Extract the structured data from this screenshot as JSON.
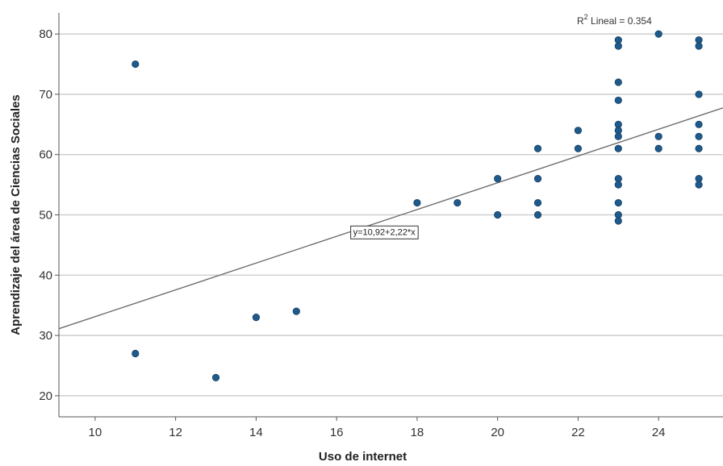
{
  "chart_data": {
    "type": "scatter",
    "title": "",
    "xlabel": "Uso de internet",
    "ylabel": "Aprendizaje del área de Ciencias Sociales",
    "xlim": [
      9.1,
      25.6
    ],
    "ylim": [
      16.5,
      83.5
    ],
    "xticks": [
      10,
      12,
      14,
      16,
      18,
      20,
      22,
      24
    ],
    "yticks": [
      20,
      30,
      40,
      50,
      60,
      70,
      80
    ],
    "grid": "horizontal",
    "point_color": "#1F5A8C",
    "line_color": "#6E6E6E",
    "fit_line": {
      "intercept": 10.92,
      "slope": 2.22
    },
    "fit_equation_label": "y=10,92+2,22*x",
    "r2_label_main": "R",
    "r2_label_sup": "2",
    "r2_label_rest": " Lineal = 0.354",
    "points": [
      {
        "x": 11,
        "y": 75
      },
      {
        "x": 11,
        "y": 27
      },
      {
        "x": 13,
        "y": 23
      },
      {
        "x": 14,
        "y": 33
      },
      {
        "x": 15,
        "y": 34
      },
      {
        "x": 18,
        "y": 52
      },
      {
        "x": 19,
        "y": 52
      },
      {
        "x": 20,
        "y": 56
      },
      {
        "x": 20,
        "y": 50
      },
      {
        "x": 21,
        "y": 61
      },
      {
        "x": 21,
        "y": 56
      },
      {
        "x": 21,
        "y": 52
      },
      {
        "x": 21,
        "y": 50
      },
      {
        "x": 22,
        "y": 64
      },
      {
        "x": 22,
        "y": 61
      },
      {
        "x": 23,
        "y": 79
      },
      {
        "x": 23,
        "y": 78
      },
      {
        "x": 23,
        "y": 72
      },
      {
        "x": 23,
        "y": 69
      },
      {
        "x": 23,
        "y": 65
      },
      {
        "x": 23,
        "y": 64
      },
      {
        "x": 23,
        "y": 63
      },
      {
        "x": 23,
        "y": 61
      },
      {
        "x": 23,
        "y": 56
      },
      {
        "x": 23,
        "y": 55
      },
      {
        "x": 23,
        "y": 52
      },
      {
        "x": 23,
        "y": 50
      },
      {
        "x": 23,
        "y": 49
      },
      {
        "x": 24,
        "y": 80
      },
      {
        "x": 24,
        "y": 63
      },
      {
        "x": 24,
        "y": 61
      },
      {
        "x": 25,
        "y": 79
      },
      {
        "x": 25,
        "y": 78
      },
      {
        "x": 25,
        "y": 70
      },
      {
        "x": 25,
        "y": 65
      },
      {
        "x": 25,
        "y": 63
      },
      {
        "x": 25,
        "y": 61
      },
      {
        "x": 25,
        "y": 56
      },
      {
        "x": 25,
        "y": 55
      }
    ]
  }
}
